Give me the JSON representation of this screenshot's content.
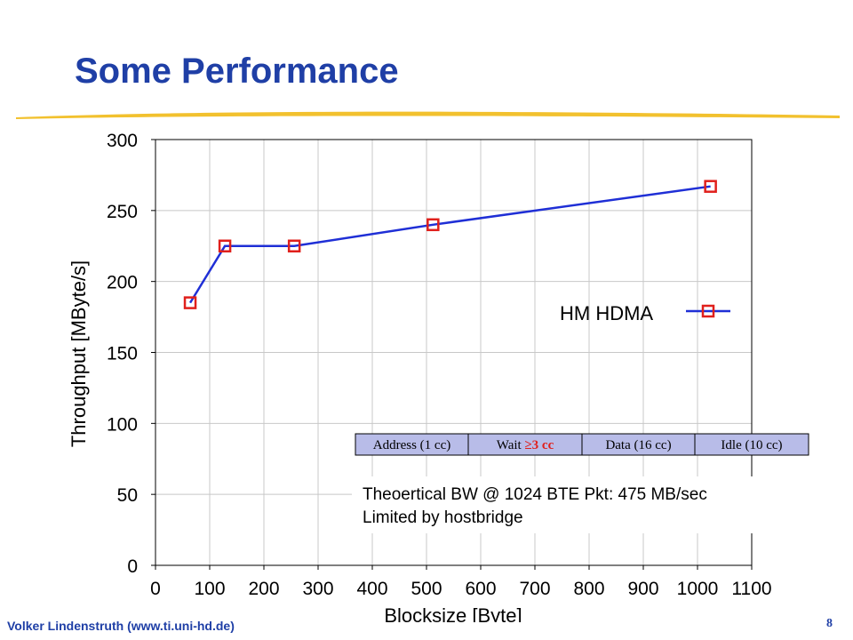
{
  "slide": {
    "title": "Some Performance",
    "footer_author": "Volker Lindenstruth (www.ti.uni-hd.de)",
    "page_number": "8"
  },
  "colors": {
    "title": "#1f3fa6",
    "rule": "#f2c12e",
    "series_line": "#1f2fd6",
    "marker": "#e0201c",
    "grid": "#c8c8c8",
    "timing_box": "#b8bce8",
    "timing_highlight": "#e0201c"
  },
  "chart_data": {
    "type": "line",
    "xlabel": "Blocksize [Byte]",
    "ylabel": "Throughput [MByte/s]",
    "xlim": [
      0,
      1100
    ],
    "ylim": [
      0,
      300
    ],
    "xticks": [
      0,
      100,
      200,
      300,
      400,
      500,
      600,
      700,
      800,
      900,
      1000,
      1100
    ],
    "yticks": [
      0,
      50,
      100,
      150,
      200,
      250,
      300
    ],
    "grid": true,
    "legend_position": "right",
    "series": [
      {
        "name": "HM HDMA",
        "x": [
          64,
          128,
          256,
          512,
          1024
        ],
        "y": [
          185,
          225,
          225,
          240,
          267
        ]
      }
    ],
    "timing_diagram": [
      {
        "label": "Address (1 cc)"
      },
      {
        "prefix": "Wait",
        "highlight": "≥3 cc"
      },
      {
        "label": "Data (16 cc)"
      },
      {
        "label": "Idle (10 cc)"
      }
    ],
    "annotations": [
      "Theoertical BW @ 1024 BTE Pkt: 475 MB/sec",
      "Limited by hostbridge"
    ]
  }
}
